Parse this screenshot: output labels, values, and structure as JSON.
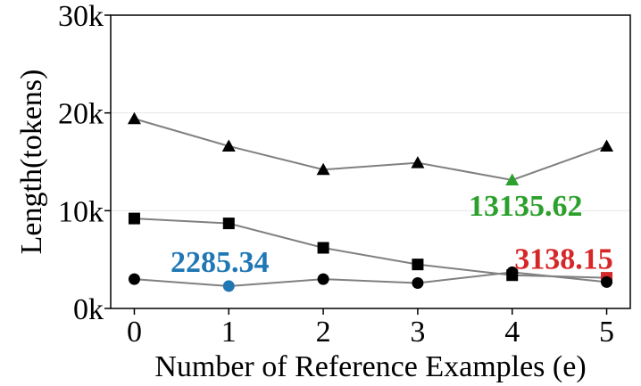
{
  "chart_data": {
    "type": "line",
    "title": "",
    "xlabel": "Number of Reference Examples (e)",
    "ylabel": "Length(tokens)",
    "x": [
      0,
      1,
      2,
      3,
      4,
      5
    ],
    "x_tick_labels": [
      "0",
      "1",
      "2",
      "3",
      "4",
      "5"
    ],
    "ylim": [
      0,
      30000
    ],
    "y_ticks": [
      0,
      10000,
      20000,
      30000
    ],
    "y_tick_labels": [
      "0k",
      "10k",
      "20k",
      "30k"
    ],
    "grid": "horizontal",
    "line_color": "#808080",
    "series": [
      {
        "marker": "triangle",
        "values": [
          19400,
          16600,
          14200,
          14900,
          13135.62,
          16600
        ]
      },
      {
        "marker": "square",
        "values": [
          9200,
          8700,
          6200,
          4500,
          3400,
          3138.15
        ]
      },
      {
        "marker": "circle",
        "values": [
          3000,
          2285.34,
          3000,
          2600,
          3700,
          2700
        ]
      }
    ],
    "highlights": [
      {
        "series": 2,
        "index": 1,
        "label": "2285.34",
        "color": "#1f77b4"
      },
      {
        "series": 0,
        "index": 4,
        "label": "13135.62",
        "color": "#2ca02c"
      },
      {
        "series": 1,
        "index": 5,
        "label": "3138.15",
        "color": "#d62728"
      }
    ]
  }
}
